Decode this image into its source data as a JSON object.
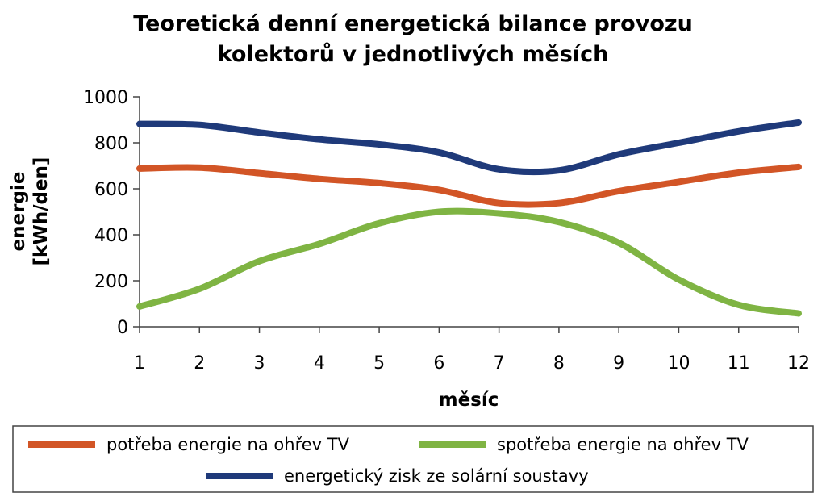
{
  "chart_data": {
    "type": "line",
    "title_lines": [
      "Teoretická denní energetická bilance provozu",
      "kolektorů v jednotlivých měsích"
    ],
    "xlabel": "měsíc",
    "ylabel_lines": [
      "energie",
      "[kWh/den]"
    ],
    "x": [
      1,
      2,
      3,
      4,
      5,
      6,
      7,
      8,
      9,
      10,
      11,
      12
    ],
    "x_tick_labels": [
      "1",
      "2",
      "3",
      "4",
      "5",
      "6",
      "7",
      "8",
      "9",
      "10",
      "11",
      "12"
    ],
    "y_tick_labels": [
      "0",
      "200",
      "400",
      "600",
      "800",
      "1000"
    ],
    "xlim": [
      1,
      12
    ],
    "ylim": [
      0,
      1000
    ],
    "grid": false,
    "legend_position": "bottom",
    "series": [
      {
        "name": "potřeba energie na ohřev TV",
        "color": "#d25526",
        "values": [
          688,
          692,
          668,
          643,
          625,
          595,
          538,
          538,
          590,
          630,
          670,
          695
        ]
      },
      {
        "name": "spotřeba energie na ohřev TV",
        "color": "#7fb443",
        "values": [
          88,
          165,
          285,
          360,
          450,
          500,
          493,
          455,
          365,
          205,
          95,
          58
        ]
      },
      {
        "name": "energetický zisk ze solární soustavy",
        "color": "#1f3a7a",
        "values": [
          882,
          878,
          845,
          815,
          793,
          758,
          685,
          680,
          750,
          800,
          850,
          888
        ]
      }
    ]
  }
}
